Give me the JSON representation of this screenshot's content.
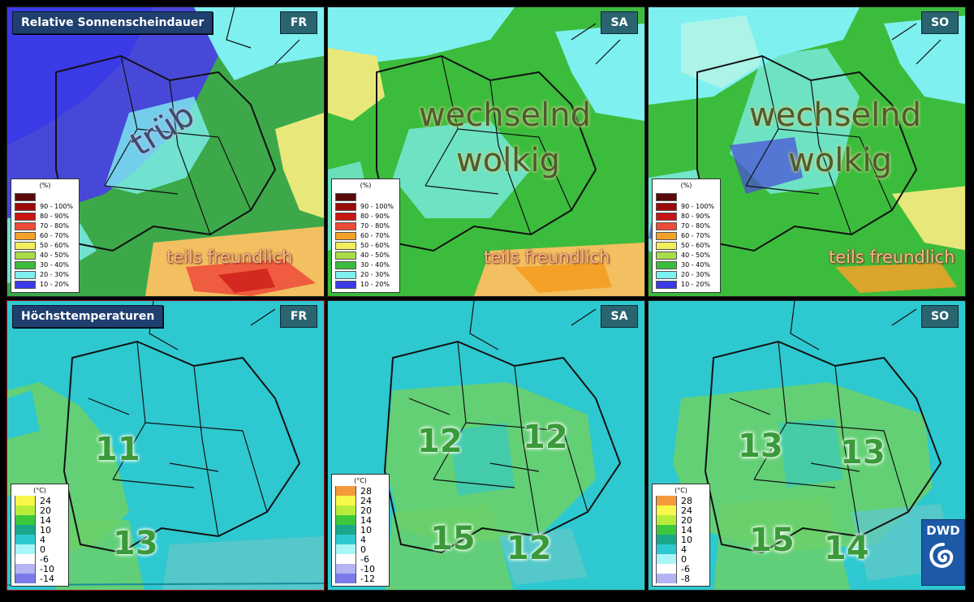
{
  "sunshine": {
    "title": "Relative Sonnenscheindauer",
    "legend_unit": "(%)",
    "legend": [
      {
        "label": "",
        "color": "#5a0a0a"
      },
      {
        "label": "90 - 100%",
        "color": "#9c0a0a"
      },
      {
        "label": "80 - 90%",
        "color": "#c81414"
      },
      {
        "label": "70 - 80%",
        "color": "#ee4a3a"
      },
      {
        "label": "60 - 70%",
        "color": "#f5a128"
      },
      {
        "label": "50 - 60%",
        "color": "#f2ee5c"
      },
      {
        "label": "40 - 50%",
        "color": "#a8dc4a"
      },
      {
        "label": "30 - 40%",
        "color": "#3cbc3c"
      },
      {
        "label": "20 - 30%",
        "color": "#7ef0f0"
      },
      {
        "label": "10 - 20%",
        "color": "#3a3ae6"
      }
    ],
    "panels": [
      {
        "day": "FR",
        "labels": [
          "trüb",
          "teils freundlich"
        ]
      },
      {
        "day": "SA",
        "labels": [
          "wechselnd",
          "wolkig",
          "teils freundlich"
        ]
      },
      {
        "day": "SO",
        "labels": [
          "wechselnd",
          "wolkig",
          "teils freundlich"
        ]
      }
    ]
  },
  "temperature": {
    "title": "Höchsttemperaturen",
    "legend_unit": "(°C)",
    "panels": [
      {
        "day": "FR",
        "values": [
          "11",
          "13"
        ],
        "legend": [
          {
            "label": "24",
            "color": "#f8f84a"
          },
          {
            "label": "20",
            "color": "#b8ec3a"
          },
          {
            "label": "14",
            "color": "#3cc83c"
          },
          {
            "label": "10",
            "color": "#1aa88a"
          },
          {
            "label": "4",
            "color": "#2ec8d0"
          },
          {
            "label": "0",
            "color": "#a8f6f6"
          },
          {
            "label": "-6",
            "color": "#ffffff"
          },
          {
            "label": "-10",
            "color": "#b4b4f4"
          },
          {
            "label": "-14",
            "color": "#7a7ae8"
          }
        ]
      },
      {
        "day": "SA",
        "values": [
          "12",
          "12",
          "15",
          "12"
        ],
        "legend": [
          {
            "label": "28",
            "color": "#f59a3a"
          },
          {
            "label": "24",
            "color": "#f8f84a"
          },
          {
            "label": "20",
            "color": "#b8ec3a"
          },
          {
            "label": "14",
            "color": "#3cc83c"
          },
          {
            "label": "10",
            "color": "#1aa88a"
          },
          {
            "label": "4",
            "color": "#2ec8d0"
          },
          {
            "label": "0",
            "color": "#a8f6f6"
          },
          {
            "label": "-6",
            "color": "#ffffff"
          },
          {
            "label": "-10",
            "color": "#b4b4f4"
          },
          {
            "label": "-12",
            "color": "#7a7ae8"
          }
        ]
      },
      {
        "day": "SO",
        "values": [
          "13",
          "13",
          "15",
          "14"
        ],
        "legend": [
          {
            "label": "28",
            "color": "#f59a3a"
          },
          {
            "label": "24",
            "color": "#f8f84a"
          },
          {
            "label": "20",
            "color": "#b8ec3a"
          },
          {
            "label": "14",
            "color": "#3cc83c"
          },
          {
            "label": "10",
            "color": "#1aa88a"
          },
          {
            "label": "4",
            "color": "#2ec8d0"
          },
          {
            "label": "0",
            "color": "#a8f6f6"
          },
          {
            "label": "-6",
            "color": "#ffffff"
          },
          {
            "label": "-8",
            "color": "#b4b4f4"
          }
        ]
      }
    ]
  },
  "logo": {
    "text": "DWD",
    "icon": "dwd-swirl-logo"
  }
}
